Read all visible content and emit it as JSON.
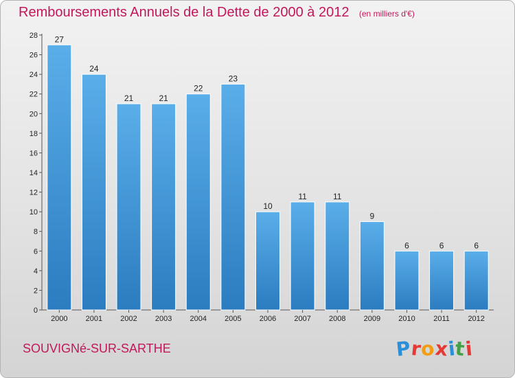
{
  "chart_data": {
    "type": "bar",
    "title": "Remboursements Annuels de la Dette de 2000 à 2012",
    "unit": "(en milliers d'€)",
    "categories": [
      "2000",
      "2001",
      "2002",
      "2003",
      "2004",
      "2005",
      "2006",
      "2007",
      "2008",
      "2009",
      "2010",
      "2011",
      "2012"
    ],
    "values": [
      27,
      24,
      21,
      21,
      22,
      23,
      10,
      11,
      11,
      9,
      6,
      6,
      6
    ],
    "ylim": [
      0,
      28
    ],
    "yticks": [
      0,
      2,
      4,
      6,
      8,
      10,
      12,
      14,
      16,
      18,
      20,
      22,
      24,
      26,
      28
    ],
    "xlabel": "",
    "ylabel": "",
    "grid": false,
    "legend": "none",
    "colors": {
      "bar_light": "#5aaee9",
      "bar_dark": "#2b7cc0",
      "title": "#c2185b"
    }
  },
  "footer": {
    "commune": "SOUVIGNé-SUR-SARTHE",
    "logo": "Proxiti",
    "logo_colors": [
      "#2b8fd8",
      "#e53935",
      "#f39c12",
      "#e53935",
      "#2b8fd8",
      "#43a047",
      "#e53935"
    ]
  }
}
